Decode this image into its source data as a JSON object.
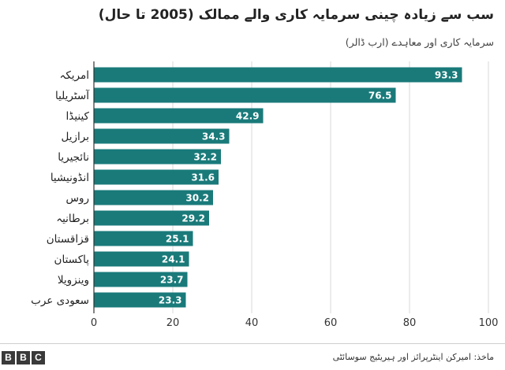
{
  "title": "سب سے زیادہ چینی سرمایہ کاری والے ممالک (2005 تا حال)",
  "subtitle": "سرمایہ کاری اور معاہدے (ارب ڈالر)",
  "source": "ماخذ: امیرکن اینٹرپرائز اور ہیریٹیج سوسائٹی",
  "logo": [
    "B",
    "B",
    "C"
  ],
  "chart_data": {
    "type": "bar",
    "orientation": "horizontal",
    "title": "سب سے زیادہ چینی سرمایہ کاری والے ممالک (2005 تا حال)",
    "ylabel": "سرمایہ کاری اور معاہدے (ارب ڈالر)",
    "categories": [
      "امریکہ",
      "آسٹریلیا",
      "کینیڈا",
      "برازیل",
      "نائجیریا",
      "انڈونیشیا",
      "روس",
      "برطانیہ",
      "قزاقستان",
      "پاکستان",
      "وینزویلا",
      "سعودی عرب"
    ],
    "values": [
      93.3,
      76.5,
      42.9,
      34.3,
      32.2,
      31.6,
      30.2,
      29.2,
      25.1,
      24.1,
      23.7,
      23.3
    ],
    "xlim": [
      0,
      100
    ],
    "xticks": [
      0,
      20,
      40,
      60,
      80,
      100
    ],
    "data_labels": true,
    "grid": "vertical",
    "colors": {
      "bar": "#1a7a7a",
      "grid": "#d9d9d9",
      "label": "#ffffff",
      "axis": "#333333"
    }
  }
}
